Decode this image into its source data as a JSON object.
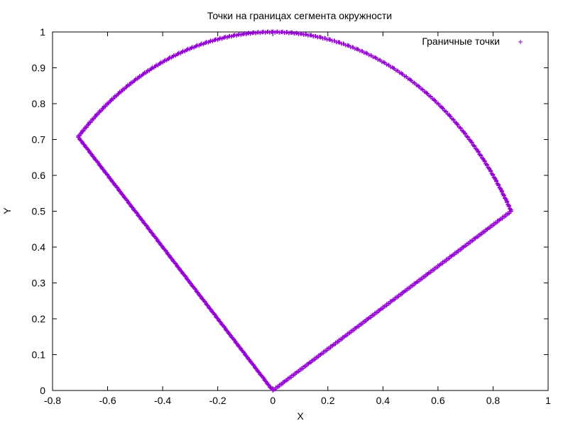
{
  "chart_data": {
    "type": "scatter",
    "title": "Точки на границах сегмента окружности",
    "xlabel": "X",
    "ylabel": "Y",
    "xlim": [
      -0.8,
      1
    ],
    "ylim": [
      0,
      1
    ],
    "x_ticks": [
      -0.8,
      -0.6,
      -0.4,
      -0.2,
      0,
      0.2,
      0.4,
      0.6,
      0.8,
      1
    ],
    "x_tick_labels": [
      "-0.8",
      "-0.6",
      "-0.4",
      "-0.2",
      "0",
      "0.2",
      "0.4",
      "0.6",
      "0.8",
      "1"
    ],
    "y_ticks": [
      0,
      0.1,
      0.2,
      0.3,
      0.4,
      0.5,
      0.6,
      0.7,
      0.8,
      0.9,
      1
    ],
    "y_tick_labels": [
      "0",
      "0.1",
      "0.2",
      "0.3",
      "0.4",
      "0.5",
      "0.6",
      "0.7",
      "0.8",
      "0.9",
      "1"
    ],
    "grid": false,
    "legend_position": "top-right",
    "series": [
      {
        "name": "Граничные точки",
        "marker": "+",
        "color": "#9400d3",
        "points": [
          [
            0.0,
            0.0
          ],
          [
            0.0433,
            0.025
          ],
          [
            0.0866,
            0.05
          ],
          [
            0.1299,
            0.075
          ],
          [
            0.1732,
            0.1
          ],
          [
            0.2165,
            0.125
          ],
          [
            0.2598,
            0.15
          ],
          [
            0.3031,
            0.175
          ],
          [
            0.3464,
            0.2
          ],
          [
            0.3897,
            0.225
          ],
          [
            0.433,
            0.25
          ],
          [
            0.4763,
            0.275
          ],
          [
            0.5196,
            0.3
          ],
          [
            0.5629,
            0.325
          ],
          [
            0.6062,
            0.35
          ],
          [
            0.6495,
            0.375
          ],
          [
            0.6928,
            0.4
          ],
          [
            0.7361,
            0.425
          ],
          [
            0.7794,
            0.45
          ],
          [
            0.8227,
            0.475
          ],
          [
            0.866,
            0.5
          ],
          [
            0.848,
            0.5299
          ],
          [
            0.829,
            0.5592
          ],
          [
            0.809,
            0.5878
          ],
          [
            0.788,
            0.6157
          ],
          [
            0.766,
            0.6428
          ],
          [
            0.743,
            0.6691
          ],
          [
            0.7193,
            0.6947
          ],
          [
            0.6947,
            0.7193
          ],
          [
            0.6691,
            0.743
          ],
          [
            0.6428,
            0.766
          ],
          [
            0.6157,
            0.788
          ],
          [
            0.5878,
            0.809
          ],
          [
            0.5592,
            0.829
          ],
          [
            0.5299,
            0.848
          ],
          [
            0.5,
            0.866
          ],
          [
            0.4695,
            0.8829
          ],
          [
            0.4384,
            0.8988
          ],
          [
            0.4067,
            0.9135
          ],
          [
            0.3746,
            0.9272
          ],
          [
            0.342,
            0.9397
          ],
          [
            0.309,
            0.9511
          ],
          [
            0.2756,
            0.9613
          ],
          [
            0.2419,
            0.9703
          ],
          [
            0.2079,
            0.9781
          ],
          [
            0.1736,
            0.9848
          ],
          [
            0.1392,
            0.9903
          ],
          [
            0.1045,
            0.9945
          ],
          [
            0.0698,
            0.9976
          ],
          [
            0.0349,
            0.9994
          ],
          [
            0.0,
            1.0
          ],
          [
            -0.0349,
            0.9994
          ],
          [
            -0.0698,
            0.9976
          ],
          [
            -0.1045,
            0.9945
          ],
          [
            -0.1392,
            0.9903
          ],
          [
            -0.1736,
            0.9848
          ],
          [
            -0.2079,
            0.9781
          ],
          [
            -0.2419,
            0.9703
          ],
          [
            -0.2756,
            0.9613
          ],
          [
            -0.309,
            0.9511
          ],
          [
            -0.342,
            0.9397
          ],
          [
            -0.3746,
            0.9272
          ],
          [
            -0.4067,
            0.9135
          ],
          [
            -0.4384,
            0.8988
          ],
          [
            -0.4695,
            0.8829
          ],
          [
            -0.5,
            0.866
          ],
          [
            -0.5299,
            0.848
          ],
          [
            -0.5592,
            0.829
          ],
          [
            -0.5878,
            0.809
          ],
          [
            -0.6157,
            0.788
          ],
          [
            -0.6428,
            0.766
          ],
          [
            -0.6691,
            0.743
          ],
          [
            -0.6947,
            0.7193
          ],
          [
            -0.7071,
            0.7071
          ],
          [
            -0.6718,
            0.6718
          ],
          [
            -0.6364,
            0.6364
          ],
          [
            -0.6011,
            0.6011
          ],
          [
            -0.5657,
            0.5657
          ],
          [
            -0.5303,
            0.5303
          ],
          [
            -0.495,
            0.495
          ],
          [
            -0.4596,
            0.4596
          ],
          [
            -0.4243,
            0.4243
          ],
          [
            -0.3889,
            0.3889
          ],
          [
            -0.3536,
            0.3536
          ],
          [
            -0.3182,
            0.3182
          ],
          [
            -0.2828,
            0.2828
          ],
          [
            -0.2475,
            0.2475
          ],
          [
            -0.2121,
            0.2121
          ],
          [
            -0.1768,
            0.1768
          ],
          [
            -0.1414,
            0.1414
          ],
          [
            -0.1061,
            0.1061
          ],
          [
            -0.0707,
            0.0707
          ],
          [
            -0.0354,
            0.0354
          ],
          [
            0.0,
            0.0
          ]
        ]
      }
    ]
  }
}
